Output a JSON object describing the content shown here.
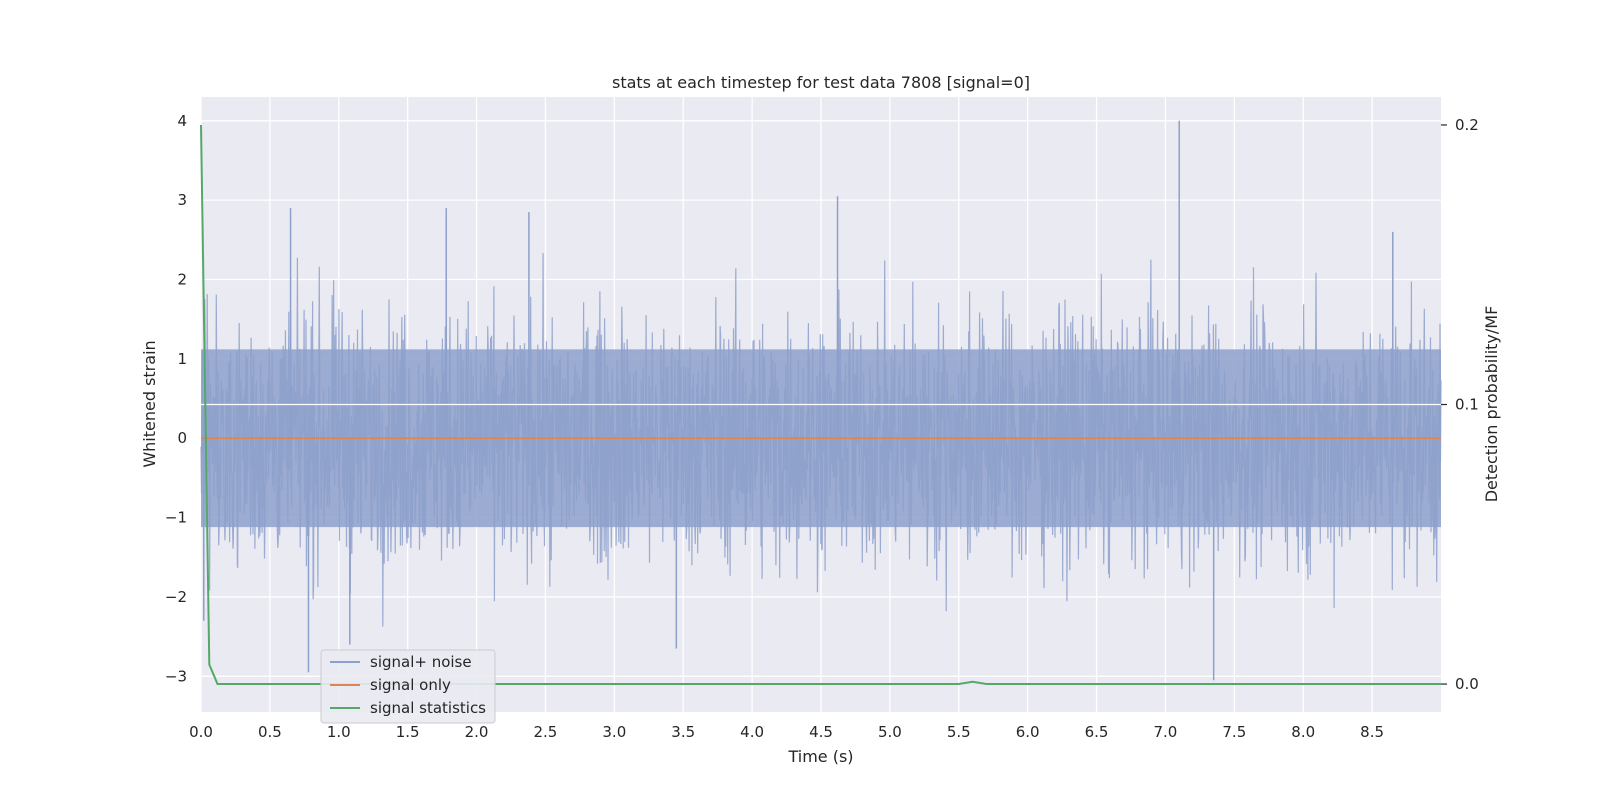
{
  "chart_data": {
    "type": "line",
    "title": "stats at each timestep for test data 7808 [signal=0]",
    "xlabel": "Time (s)",
    "ylabel": "Whitened strain",
    "y2label": "Detection probability/MF",
    "xlim": [
      0.0,
      9.0
    ],
    "ylim": [
      -3.45,
      4.3
    ],
    "y2lim": [
      -0.01,
      0.21
    ],
    "xticks": [
      "0.0",
      "0.5",
      "1.0",
      "1.5",
      "2.0",
      "2.5",
      "3.0",
      "3.5",
      "4.0",
      "4.5",
      "5.0",
      "5.5",
      "6.0",
      "6.5",
      "7.0",
      "7.5",
      "8.0",
      "8.5"
    ],
    "yticks": [
      "−3",
      "−2",
      "−1",
      "0",
      "1",
      "2",
      "3",
      "4"
    ],
    "y2ticks": [
      "0.0",
      "0.1",
      "0.2"
    ],
    "grid": true,
    "legend_position": "lower-left",
    "series": [
      {
        "name": "signal+ noise",
        "axis": "left",
        "color": "#8da0cb",
        "description_only": false,
        "peak_points": [
          {
            "x": 0.02,
            "y": -2.3
          },
          {
            "x": 0.65,
            "y": 2.9
          },
          {
            "x": 0.78,
            "y": -2.95
          },
          {
            "x": 1.08,
            "y": -2.6
          },
          {
            "x": 1.78,
            "y": 2.9
          },
          {
            "x": 2.38,
            "y": 2.85
          },
          {
            "x": 3.45,
            "y": -2.65
          },
          {
            "x": 4.62,
            "y": 3.05
          },
          {
            "x": 7.1,
            "y": 4.0
          },
          {
            "x": 7.35,
            "y": -3.05
          },
          {
            "x": 8.65,
            "y": 2.6
          }
        ],
        "envelope_upper": 1.6,
        "envelope_lower": -1.6
      },
      {
        "name": "signal only",
        "axis": "left",
        "color": "#dd8452",
        "x": [
          0.0,
          9.0
        ],
        "y": [
          0.0,
          0.0
        ]
      },
      {
        "name": "signal statistics",
        "axis": "right",
        "color": "#55a868",
        "x": [
          0.0,
          0.06,
          0.12,
          0.5,
          1.0,
          2.0,
          3.0,
          4.0,
          5.0,
          5.5,
          5.6,
          5.7,
          6.0,
          7.0,
          8.0,
          9.0
        ],
        "y": [
          0.2,
          0.007,
          0.0,
          0.0,
          0.0,
          0.0,
          0.0,
          0.0,
          0.0,
          0.0,
          0.0008,
          0.0,
          0.0,
          0.0,
          0.0,
          0.0
        ]
      }
    ]
  }
}
